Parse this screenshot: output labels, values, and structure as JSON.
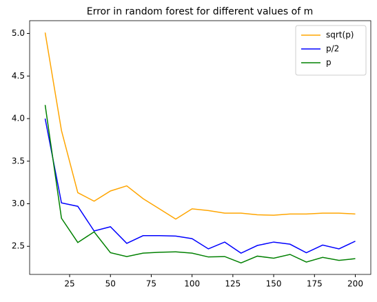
{
  "chart_data": {
    "type": "line",
    "title": "Error in random forest for different values of m",
    "x": [
      10,
      20,
      30,
      40,
      50,
      60,
      70,
      80,
      90,
      100,
      110,
      120,
      130,
      140,
      150,
      160,
      170,
      180,
      190,
      200
    ],
    "series": [
      {
        "name": "sqrt(p)",
        "color": "#ffa500",
        "values": [
          5.01,
          3.86,
          3.13,
          3.03,
          3.15,
          3.21,
          3.06,
          2.94,
          2.82,
          2.94,
          2.92,
          2.89,
          2.89,
          2.87,
          2.865,
          2.88,
          2.88,
          2.89,
          2.89,
          2.88
        ]
      },
      {
        "name": "p/2",
        "color": "#0000ff",
        "values": [
          4.0,
          3.01,
          2.97,
          2.68,
          2.73,
          2.535,
          2.625,
          2.625,
          2.62,
          2.59,
          2.47,
          2.55,
          2.42,
          2.51,
          2.55,
          2.525,
          2.425,
          2.515,
          2.47,
          2.56
        ]
      },
      {
        "name": "p",
        "color": "#008000",
        "values": [
          4.16,
          2.83,
          2.545,
          2.67,
          2.425,
          2.38,
          2.42,
          2.43,
          2.435,
          2.42,
          2.375,
          2.38,
          2.305,
          2.385,
          2.36,
          2.405,
          2.315,
          2.37,
          2.335,
          2.355
        ]
      }
    ],
    "xlim": [
      0.5,
      209.5
    ],
    "xticks": [
      25,
      50,
      75,
      100,
      125,
      150,
      175,
      200
    ],
    "ylim": [
      2.17,
      5.15
    ],
    "yticks": [
      {
        "value": 2.5,
        "label": "2.5"
      },
      {
        "value": 3,
        "label": "3.0"
      },
      {
        "value": 3.5,
        "label": "3.5"
      },
      {
        "value": 4,
        "label": "4.0"
      },
      {
        "value": 4.5,
        "label": "4.5"
      },
      {
        "value": 5,
        "label": "5.0"
      }
    ],
    "legend": "upper right"
  }
}
